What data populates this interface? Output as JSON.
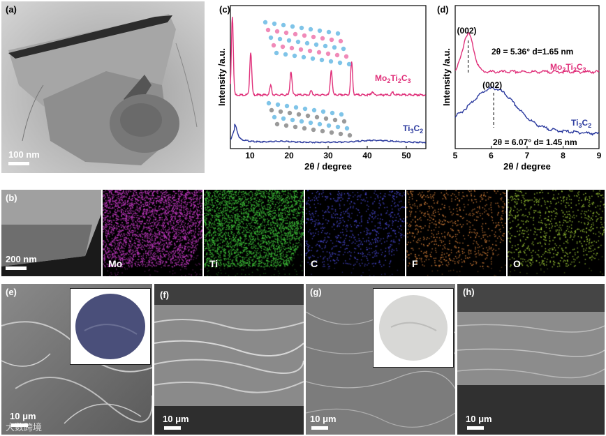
{
  "panels": {
    "a": {
      "label": "(a)",
      "scale": "100 nm"
    },
    "b": {
      "label": "(b)",
      "scale": "200 nm",
      "maps": [
        {
          "element": "Mo",
          "color": "#c63ac6"
        },
        {
          "element": "Ti",
          "color": "#3fc63a"
        },
        {
          "element": "C",
          "color": "#4a4ad8"
        },
        {
          "element": "F",
          "color": "#d8823a"
        },
        {
          "element": "O",
          "color": "#a8d83a"
        }
      ]
    },
    "c": {
      "label": "(c)"
    },
    "d": {
      "label": "(d)"
    },
    "e": {
      "label": "(e)",
      "scale": "10 μm"
    },
    "f": {
      "label": "(f)",
      "scale": "10 μm"
    },
    "g": {
      "label": "(g)",
      "scale": "10 μm"
    },
    "h": {
      "label": "(h)",
      "scale": "10 μm"
    }
  },
  "watermark": "大数跨境",
  "chart_data": [
    {
      "type": "line",
      "panel": "c",
      "xlabel": "2θ / degree",
      "ylabel": "Intensity /a.u.",
      "xlim": [
        5,
        55
      ],
      "xticks": [
        10,
        20,
        30,
        40,
        50
      ],
      "series": [
        {
          "name": "Mo₂Ti₂C₃",
          "color": "#e0307a",
          "peaks": [
            [
              5.5,
              1.0
            ],
            [
              10.2,
              0.55
            ],
            [
              15.3,
              0.12
            ],
            [
              20.5,
              0.3
            ],
            [
              25.7,
              0.05
            ],
            [
              30.8,
              0.32
            ],
            [
              36.0,
              0.42
            ],
            [
              41.3,
              0.04
            ],
            [
              46.5,
              0.03
            ]
          ]
        },
        {
          "name": "Ti₃C₂",
          "color": "#2b3a9e",
          "peaks": [
            [
              6.1,
              0.25
            ],
            [
              18.0,
              0.02
            ],
            [
              42.0,
              0.04
            ]
          ]
        }
      ]
    },
    {
      "type": "line",
      "panel": "d",
      "xlabel": "2θ / degree",
      "ylabel": "Intensity /a.u.",
      "xlim": [
        5,
        9
      ],
      "xticks": [
        5,
        6,
        7,
        8,
        9
      ],
      "series": [
        {
          "name": "Mo₂Ti₂C₃",
          "color": "#e0307a",
          "peak": 5.36
        },
        {
          "name": "Ti₃C₂",
          "color": "#2b3a9e",
          "peak": 6.07
        }
      ],
      "annotations": [
        {
          "text": "(002)",
          "series": "Mo₂Ti₂C₃"
        },
        {
          "text": "2θ = 5.36° d=1.65 nm",
          "series": "Mo₂Ti₂C₃"
        },
        {
          "text": "(002)",
          "series": "Ti₃C₂"
        },
        {
          "text": "2θ = 6.07° d= 1.45 nm",
          "series": "Ti₃C₂"
        }
      ]
    }
  ]
}
